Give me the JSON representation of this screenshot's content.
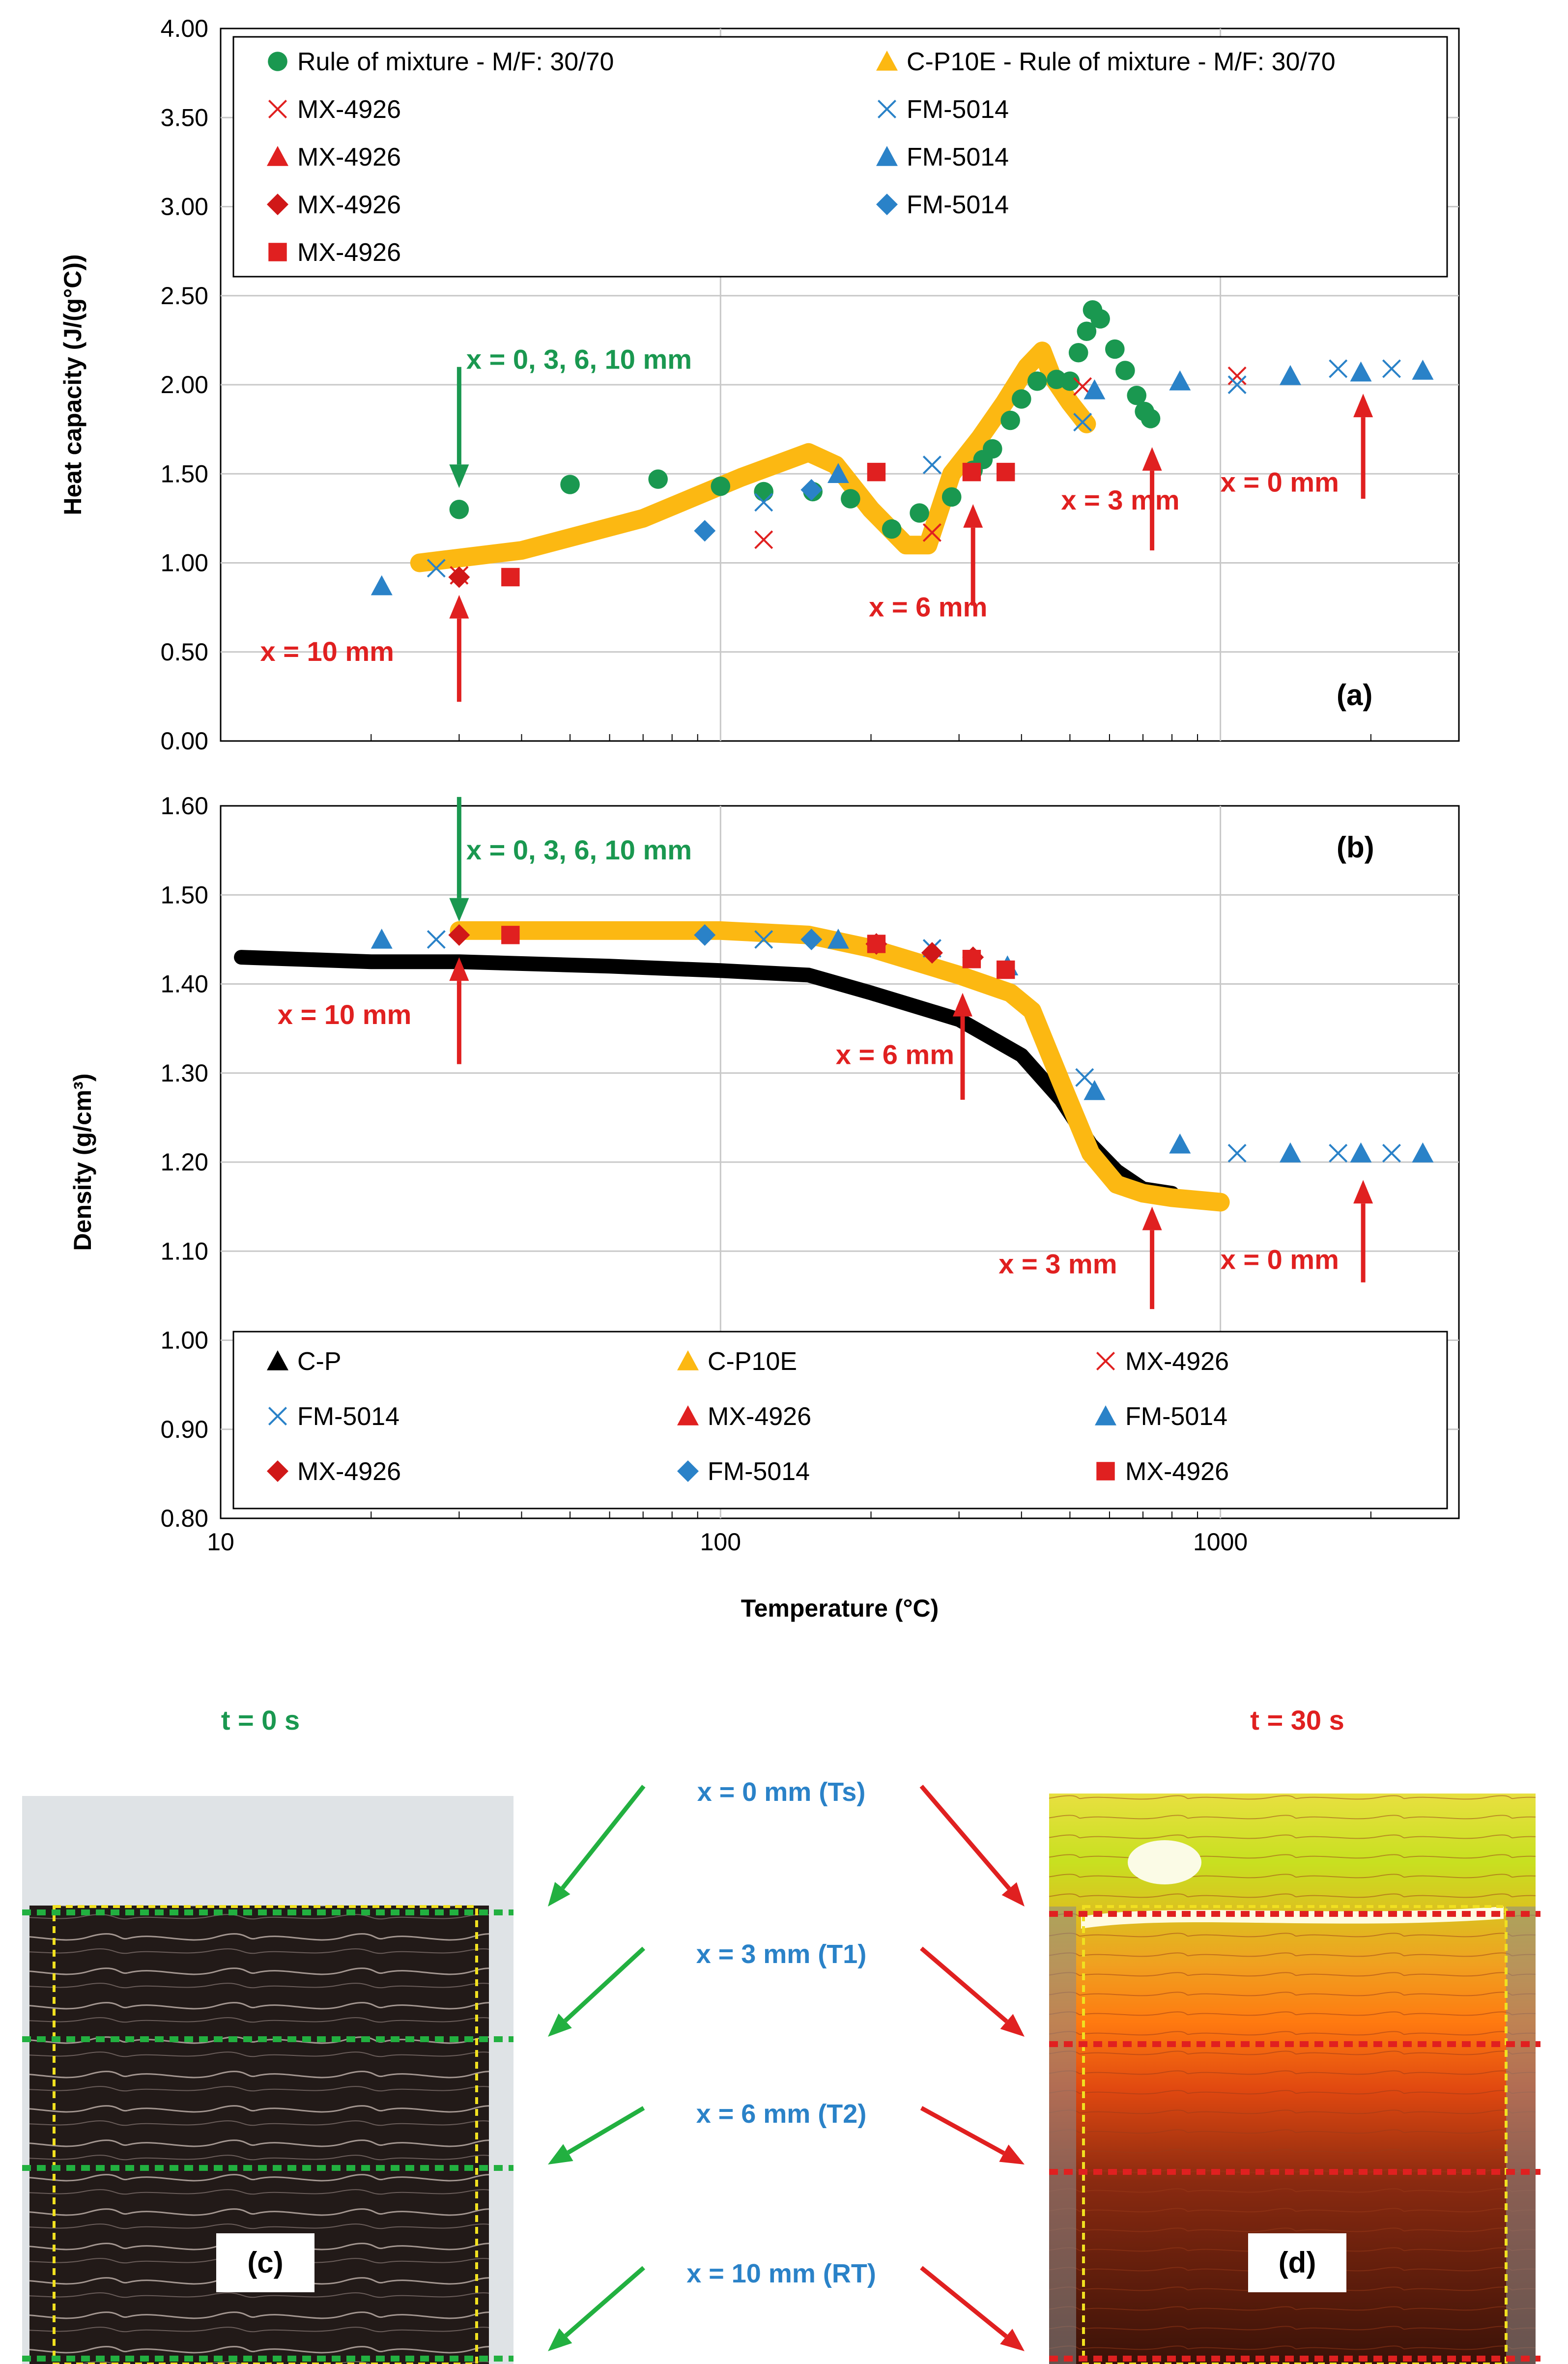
{
  "chart_data": [
    {
      "id": "a",
      "type": "scatter",
      "panel_label": "(a)",
      "ylabel": "Heat capacity (J/(g°C))",
      "xlabel": "",
      "xscale": "log",
      "xlim": [
        10,
        3000
      ],
      "ylim": [
        0,
        4
      ],
      "ytick_step": 0.5,
      "y_decimals": 2,
      "grid": true,
      "legend_position": "top",
      "legend_columns": 2,
      "series": [
        {
          "name": "Rule of mixture - M/F: 30/70",
          "marker": "circle",
          "color": "#1a9850",
          "x": [
            30,
            50,
            75,
            100,
            122,
            153,
            182,
            220,
            250,
            290,
            320,
            335,
            350,
            380,
            400,
            430,
            470,
            500,
            520,
            540,
            555,
            575,
            615,
            645,
            680,
            705,
            725
          ],
          "y": [
            1.3,
            1.44,
            1.47,
            1.43,
            1.4,
            1.4,
            1.36,
            1.19,
            1.28,
            1.37,
            1.52,
            1.58,
            1.64,
            1.8,
            1.92,
            2.02,
            2.03,
            2.02,
            2.18,
            2.3,
            2.42,
            2.37,
            2.2,
            2.08,
            1.94,
            1.85,
            1.81
          ]
        },
        {
          "name": "C-P10E - Rule of mixture - M/F: 30/70",
          "type": "line",
          "color": "#fcb812",
          "x": [
            25,
            40,
            70,
            110,
            150,
            170,
            200,
            235,
            260,
            290,
            330,
            370,
            410,
            440,
            460,
            500,
            540
          ],
          "y": [
            1.0,
            1.07,
            1.25,
            1.48,
            1.62,
            1.55,
            1.3,
            1.1,
            1.1,
            1.5,
            1.7,
            1.9,
            2.1,
            2.19,
            2.05,
            1.9,
            1.78
          ]
        },
        {
          "name": "MX-4926",
          "marker": "x",
          "color": "#e02020",
          "x": [
            30,
            122,
            265,
            530,
            1080
          ],
          "y": [
            0.93,
            1.13,
            1.17,
            1.99,
            2.05
          ]
        },
        {
          "name": "FM-5014",
          "marker": "x",
          "color": "#2a82c8",
          "x": [
            27,
            122,
            265,
            530,
            1080,
            1720,
            2200
          ],
          "y": [
            0.97,
            1.34,
            1.55,
            1.79,
            2.0,
            2.09,
            2.09
          ]
        },
        {
          "name": "MX-4926",
          "marker": "triangle",
          "color": "#e02020",
          "x": [],
          "y": []
        },
        {
          "name": "FM-5014",
          "marker": "triangle",
          "color": "#2a82c8",
          "x": [
            21,
            172,
            560,
            830,
            1380,
            1910,
            2540
          ],
          "y": [
            0.87,
            1.5,
            1.97,
            2.02,
            2.05,
            2.07,
            2.08
          ]
        },
        {
          "name": "MX-4926",
          "marker": "diamond",
          "color": "#d01818",
          "x": [
            30
          ],
          "y": [
            0.92
          ]
        },
        {
          "name": "FM-5014",
          "marker": "diamond",
          "color": "#2a82c8",
          "x": [
            93,
            152
          ],
          "y": [
            1.18,
            1.41
          ]
        },
        {
          "name": "MX-4926",
          "marker": "square",
          "color": "#e02020",
          "x": [
            38,
            205,
            318,
            372
          ],
          "y": [
            0.92,
            1.51,
            1.51,
            1.51
          ]
        }
      ],
      "annotations": [
        {
          "text": "x = 0, 3, 6, 10 mm",
          "color": "#1a9850",
          "at": [
            31,
            2.09
          ],
          "dir": "down",
          "arrow_x": 30,
          "arrow_from": 2.1,
          "arrow_to": 1.42
        },
        {
          "text": "x = 10 mm",
          "color": "#e02020",
          "at": [
            12,
            0.45
          ],
          "arrow_x": 30,
          "arrow_from": 0.22,
          "arrow_to": 0.82
        },
        {
          "text": "x = 6 mm",
          "color": "#e02020",
          "at": [
            198,
            0.7
          ],
          "arrow_x": 320,
          "arrow_from": 0.76,
          "arrow_to": 1.33
        },
        {
          "text": "x = 3 mm",
          "color": "#e02020",
          "at": [
            480,
            1.3
          ],
          "arrow_x": 730,
          "arrow_from": 1.07,
          "arrow_to": 1.65
        },
        {
          "text": "x = 0 mm",
          "color": "#e02020",
          "at": [
            1000,
            1.4
          ],
          "arrow_x": 1930,
          "arrow_from": 1.36,
          "arrow_to": 1.95
        }
      ]
    },
    {
      "id": "b",
      "type": "scatter",
      "panel_label": "(b)",
      "ylabel": "Density (g/cm³)",
      "xlabel": "Temperature (°C)",
      "xscale": "log",
      "xlim": [
        10,
        3000
      ],
      "ylim": [
        0.8,
        1.6
      ],
      "ytick_step": 0.1,
      "y_decimals": 2,
      "x_ticks": [
        10,
        100,
        1000
      ],
      "grid": true,
      "legend_position": "bottom",
      "legend_columns": 3,
      "series": [
        {
          "name": "C-P",
          "type": "line",
          "color": "#000000",
          "x": [
            11,
            20,
            30,
            60,
            100,
            150,
            200,
            300,
            400,
            480,
            550,
            620,
            700,
            800
          ],
          "y": [
            1.43,
            1.425,
            1.425,
            1.42,
            1.415,
            1.41,
            1.39,
            1.36,
            1.32,
            1.27,
            1.22,
            1.19,
            1.17,
            1.165
          ]
        },
        {
          "name": "C-P10E",
          "type": "line",
          "color": "#fcb812",
          "x": [
            30,
            60,
            100,
            150,
            200,
            300,
            380,
            420,
            480,
            550,
            620,
            700,
            800,
            1000
          ],
          "y": [
            1.46,
            1.46,
            1.46,
            1.455,
            1.44,
            1.41,
            1.39,
            1.37,
            1.29,
            1.21,
            1.175,
            1.165,
            1.16,
            1.155
          ]
        },
        {
          "name": "MX-4926",
          "marker": "x",
          "color": "#e02020",
          "x": [],
          "y": []
        },
        {
          "name": "FM-5014",
          "marker": "x",
          "color": "#2a82c8",
          "x": [
            27,
            122,
            265,
            535,
            1080,
            1720,
            2200
          ],
          "y": [
            1.45,
            1.45,
            1.44,
            1.295,
            1.21,
            1.21,
            1.21
          ]
        },
        {
          "name": "MX-4926",
          "marker": "triangle",
          "color": "#e02020",
          "x": [],
          "y": []
        },
        {
          "name": "FM-5014",
          "marker": "triangle",
          "color": "#2a82c8",
          "x": [
            21,
            172,
            375,
            560,
            830,
            1380,
            1910,
            2540
          ],
          "y": [
            1.45,
            1.45,
            1.42,
            1.28,
            1.22,
            1.21,
            1.21,
            1.21
          ]
        },
        {
          "name": "MX-4926",
          "marker": "diamond",
          "color": "#d01818",
          "x": [
            30,
            205,
            265,
            320
          ],
          "y": [
            1.455,
            1.445,
            1.435,
            1.43
          ]
        },
        {
          "name": "FM-5014",
          "marker": "diamond",
          "color": "#2a82c8",
          "x": [
            93,
            152
          ],
          "y": [
            1.455,
            1.45
          ]
        },
        {
          "name": "MX-4926",
          "marker": "square",
          "color": "#e02020",
          "x": [
            38,
            205,
            318,
            372
          ],
          "y": [
            1.455,
            1.445,
            1.428,
            1.416
          ]
        }
      ],
      "annotations": [
        {
          "text": "x = 0, 3, 6, 10 mm",
          "color": "#1a9850",
          "at": [
            31,
            1.54
          ],
          "dir": "down",
          "arrow_x": 30,
          "arrow_from": 1.61,
          "arrow_to": 1.47
        },
        {
          "text": "x = 10 mm",
          "color": "#e02020",
          "at": [
            13,
            1.355
          ],
          "arrow_x": 30,
          "arrow_from": 1.31,
          "arrow_to": 1.43
        },
        {
          "text": "x = 6 mm",
          "color": "#e02020",
          "at": [
            170,
            1.31
          ],
          "arrow_x": 305,
          "arrow_from": 1.27,
          "arrow_to": 1.39
        },
        {
          "text": "x = 3 mm",
          "color": "#e02020",
          "at": [
            360,
            1.075
          ],
          "arrow_x": 730,
          "arrow_from": 1.035,
          "arrow_to": 1.15
        },
        {
          "text": "x = 0 mm",
          "color": "#e02020",
          "at": [
            1000,
            1.08
          ],
          "arrow_x": 1930,
          "arrow_from": 1.065,
          "arrow_to": 1.18
        }
      ]
    }
  ],
  "photos": {
    "left": {
      "time_label": "t = 0 s",
      "panel_label": "(c)"
    },
    "right": {
      "time_label": "t = 30 s",
      "panel_label": "(d)"
    },
    "position_labels": [
      "x = 0 mm (Ts)",
      "x = 3 mm (T1)",
      "x = 6 mm (T2)",
      "x = 10 mm (RT)"
    ]
  }
}
